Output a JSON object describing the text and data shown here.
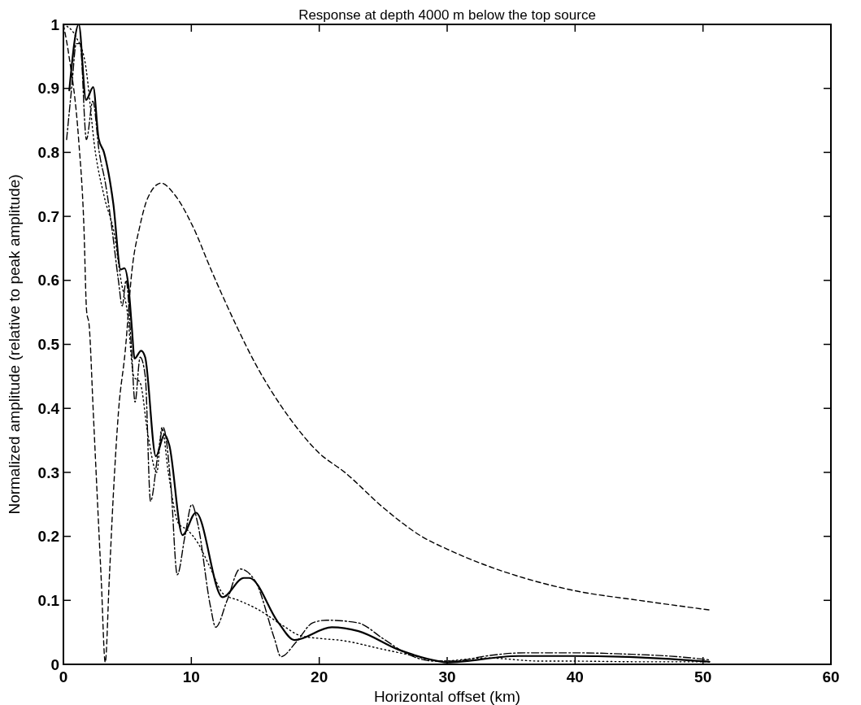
{
  "chart_data": {
    "type": "line",
    "title": "Response at depth 4000 m below the top source",
    "xlabel": "Horizontal offset (km)",
    "ylabel": "Normalized amplitude (relative to peak amplitude)",
    "xlim": [
      0,
      60
    ],
    "ylim": [
      0,
      1
    ],
    "xticks": [
      0,
      10,
      20,
      30,
      40,
      50,
      60
    ],
    "yticks": [
      0,
      0.1,
      0.2,
      0.3,
      0.4,
      0.5,
      0.6,
      0.7,
      0.8,
      0.9,
      1
    ],
    "grid": false,
    "series": [
      {
        "color": "#000000",
        "line_style": "solid",
        "x": [
          0.46,
          1.2,
          1.77,
          2.33,
          2.75,
          3.17,
          3.9,
          4.48,
          4.77,
          5.1,
          5.35,
          5.56,
          6.08,
          6.39,
          7.23,
          7.9,
          8.27,
          9.31,
          10.36,
          12.44,
          14.1,
          14.52,
          16.81,
          18.06,
          20.98,
          23.06,
          26.19,
          29.31,
          29.94,
          35.56,
          39.9,
          44.9,
          49.9,
          50.5
        ],
        "values": [
          0.897,
          1.0,
          0.882,
          0.902,
          0.822,
          0.8,
          0.72,
          0.617,
          0.619,
          0.588,
          0.526,
          0.478,
          0.49,
          0.48,
          0.325,
          0.359,
          0.343,
          0.202,
          0.237,
          0.105,
          0.135,
          0.135,
          0.065,
          0.038,
          0.058,
          0.052,
          0.023,
          0.005,
          0.003,
          0.013,
          0.013,
          0.011,
          0.005,
          0.004
        ]
      },
      {
        "color": "#000000",
        "line_style": "dashdot",
        "x": [
          0.25,
          0.67,
          1.0,
          1.3,
          1.8,
          2.3,
          2.8,
          3.3,
          3.8,
          4.3,
          4.6,
          4.9,
          5.3,
          5.6,
          6.0,
          6.4,
          6.81,
          7.4,
          7.8,
          8.4,
          8.9,
          9.5,
          10.04,
          10.5,
          11.5,
          11.9,
          12.8,
          13.8,
          15.0,
          16.5,
          17.0,
          18.2,
          19.5,
          20.56,
          23,
          25,
          27,
          29,
          30.5,
          33,
          36,
          40,
          44,
          48,
          50.5
        ],
        "values": [
          0.82,
          0.906,
          0.97,
          0.97,
          0.82,
          0.88,
          0.8,
          0.75,
          0.68,
          0.6,
          0.56,
          0.6,
          0.5,
          0.41,
          0.48,
          0.45,
          0.255,
          0.33,
          0.37,
          0.28,
          0.14,
          0.2,
          0.25,
          0.22,
          0.09,
          0.058,
          0.1,
          0.149,
          0.13,
          0.04,
          0.012,
          0.035,
          0.065,
          0.069,
          0.065,
          0.04,
          0.015,
          0.005,
          0.005,
          0.013,
          0.018,
          0.018,
          0.016,
          0.012,
          0.007
        ]
      },
      {
        "color": "#000000",
        "line_style": "dotted",
        "x": [
          0,
          1,
          1.7,
          2.5,
          3.2,
          4.0,
          4.5,
          5.0,
          5.5,
          6.0,
          6.6,
          7.3,
          7.7,
          8.2,
          9.0,
          9.7,
          10.5,
          11.5,
          12.5,
          13.7,
          15.1,
          17.2,
          18.5,
          20.3,
          21.5,
          25.1,
          27,
          29.5,
          33,
          37.4,
          40,
          45,
          50.5
        ],
        "values": [
          1.0,
          0.98,
          0.94,
          0.8,
          0.73,
          0.67,
          0.6,
          0.55,
          0.45,
          0.44,
          0.36,
          0.3,
          0.37,
          0.3,
          0.22,
          0.21,
          0.19,
          0.15,
          0.11,
          0.1,
          0.087,
          0.06,
          0.045,
          0.04,
          0.038,
          0.023,
          0.015,
          0.005,
          0.01,
          0.005,
          0.005,
          0.004,
          0.004
        ]
      },
      {
        "color": "#000000",
        "line_style": "dashed",
        "x": [
          0,
          0.44,
          1.19,
          1.6,
          1.81,
          2.02,
          2.33,
          2.64,
          2.96,
          3.27,
          3.58,
          3.9,
          4.31,
          4.83,
          5.35,
          5.98,
          6.6,
          7.64,
          8.69,
          10.1,
          11.6,
          13.5,
          15,
          17.5,
          20,
          22,
          25,
          28,
          30,
          33,
          36,
          40,
          45,
          50.5
        ],
        "values": [
          1.0,
          0.95,
          0.82,
          0.685,
          0.553,
          0.528,
          0.396,
          0.264,
          0.131,
          0.003,
          0.131,
          0.264,
          0.396,
          0.489,
          0.614,
          0.685,
          0.729,
          0.752,
          0.734,
          0.685,
          0.614,
          0.53,
          0.47,
          0.39,
          0.33,
          0.3,
          0.245,
          0.2,
          0.18,
          0.155,
          0.135,
          0.115,
          0.1,
          0.085
        ]
      }
    ]
  }
}
